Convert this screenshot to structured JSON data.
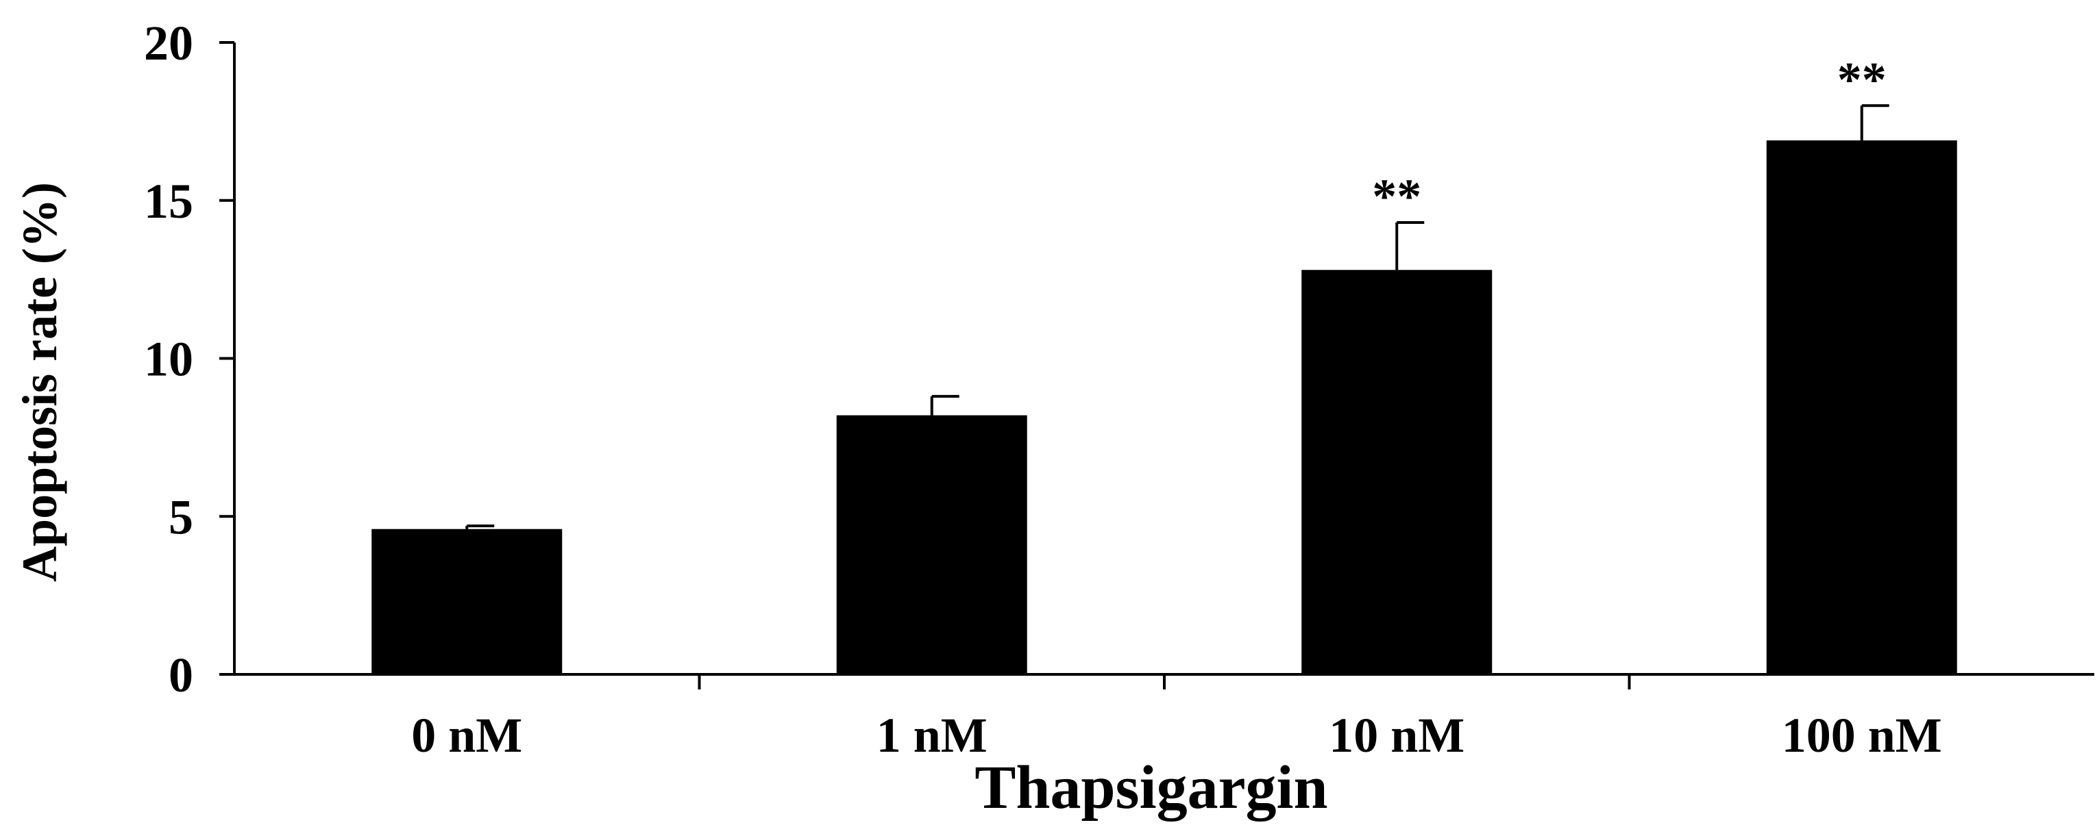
{
  "chart_data": {
    "type": "bar",
    "title": "",
    "xlabel": "Thapsigargin",
    "ylabel": "Apoptosis rate (%)",
    "ylim": [
      0,
      20
    ],
    "yticks": [
      "0",
      "5",
      "10",
      "15",
      "20"
    ],
    "categories": [
      "0 nM",
      "1 nM",
      "10 nM",
      "100 nM"
    ],
    "values": [
      4.6,
      8.2,
      12.8,
      16.9
    ],
    "errors": [
      0.1,
      0.6,
      1.5,
      1.1
    ],
    "significance": [
      "",
      "",
      "**",
      "**"
    ],
    "bar_color": "#000000",
    "grid": false,
    "legend": "none"
  }
}
